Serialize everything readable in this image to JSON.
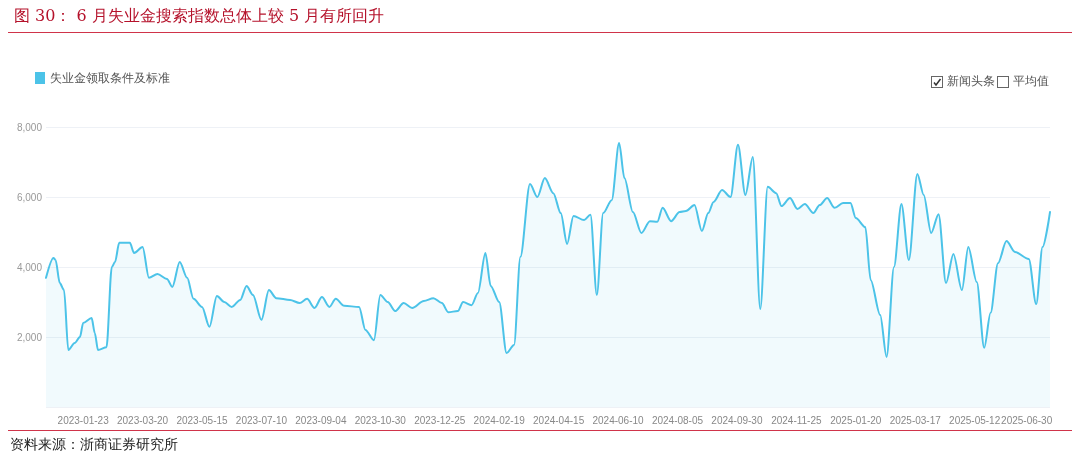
{
  "chart_data": {
    "type": "area",
    "title": "图 30：  6 月失业金搜索指数总体上较 5 月有所回升",
    "annotations": [
      "资料来源：浙商证券研究所",
      "新闻头条",
      "平均值"
    ],
    "legend": "top left",
    "grid": "y",
    "marker": "none",
    "line_style": "solid",
    "ylim": [
      0,
      8000
    ],
    "yticks": [
      {
        "value": 0,
        "label": null
      },
      {
        "value": 2000,
        "label": "2,000"
      },
      {
        "value": 4000,
        "label": "4,000"
      },
      {
        "value": 6000,
        "label": "6,000"
      },
      {
        "value": 8000,
        "label": "8,000"
      }
    ],
    "xlim": [
      "2022-12-19",
      "2025-07-22"
    ],
    "xticks": [
      "2023-01-23",
      "2023-03-20",
      "2023-05-15",
      "2023-07-10",
      "2023-09-04",
      "2023-10-30",
      "2023-12-25",
      "2024-02-19",
      "2024-04-15",
      "2024-06-10",
      "2024-08-05",
      "2024-09-30",
      "2024-11-25",
      "2025-01-20",
      "2025-03-17",
      "2025-05-12",
      "2025-06-30"
    ],
    "series": [
      {
        "name": "失业金领取条件及标准",
        "color": "#4cc3e8",
        "x": [
          "2022-12-19",
          "2022-12-26",
          "2022-12-28",
          "2023-01-01",
          "2023-01-05",
          "2023-01-09",
          "2023-01-15",
          "2023-01-20",
          "2023-01-23",
          "2023-01-31",
          "2023-02-03",
          "2023-02-06",
          "2023-02-14",
          "2023-02-19",
          "2023-02-22",
          "2023-02-26",
          "2023-03-08",
          "2023-03-12",
          "2023-03-20",
          "2023-03-26",
          "2023-04-03",
          "2023-04-12",
          "2023-04-17",
          "2023-04-24",
          "2023-05-01",
          "2023-05-07",
          "2023-05-15",
          "2023-05-22",
          "2023-05-29",
          "2023-06-05",
          "2023-06-12",
          "2023-06-20",
          "2023-06-26",
          "2023-07-02",
          "2023-07-10",
          "2023-07-17",
          "2023-07-24",
          "2023-08-06",
          "2023-08-15",
          "2023-08-22",
          "2023-08-29",
          "2023-09-05",
          "2023-09-12",
          "2023-09-18",
          "2023-09-26",
          "2023-10-10",
          "2023-10-16",
          "2023-10-24",
          "2023-10-30",
          "2023-11-06",
          "2023-11-13",
          "2023-11-21",
          "2023-11-29",
          "2023-12-10",
          "2023-12-19",
          "2023-12-27",
          "2024-01-02",
          "2024-01-11",
          "2024-01-16",
          "2024-01-24",
          "2024-01-30",
          "2024-02-06",
          "2024-02-11",
          "2024-02-19",
          "2024-02-26",
          "2024-03-04",
          "2024-03-10",
          "2024-03-19",
          "2024-03-26",
          "2024-04-02",
          "2024-04-10",
          "2024-04-17",
          "2024-04-23",
          "2024-04-29",
          "2024-05-09",
          "2024-05-15",
          "2024-05-21",
          "2024-05-27",
          "2024-06-04",
          "2024-06-11",
          "2024-06-16",
          "2024-06-24",
          "2024-07-02",
          "2024-07-10",
          "2024-07-17",
          "2024-07-22",
          "2024-07-30",
          "2024-08-07",
          "2024-08-13",
          "2024-08-21",
          "2024-08-28",
          "2024-09-03",
          "2024-09-08",
          "2024-09-16",
          "2024-09-24",
          "2024-10-01",
          "2024-10-08",
          "2024-10-15",
          "2024-10-22",
          "2024-10-29",
          "2024-11-06",
          "2024-11-11",
          "2024-11-19",
          "2024-11-26",
          "2024-12-03",
          "2024-12-11",
          "2024-12-17",
          "2024-12-24",
          "2024-12-31",
          "2025-01-08",
          "2025-01-15",
          "2025-01-20",
          "2025-01-29",
          "2025-02-03",
          "2025-02-12",
          "2025-02-18",
          "2025-02-25",
          "2025-03-04",
          "2025-03-11",
          "2025-03-19",
          "2025-03-25",
          "2025-04-01",
          "2025-04-08",
          "2025-04-15",
          "2025-04-22",
          "2025-04-30",
          "2025-05-06",
          "2025-05-14",
          "2025-05-21",
          "2025-05-27",
          "2025-06-03",
          "2025-06-11",
          "2025-06-19",
          "2025-07-02",
          "2025-07-09",
          "2025-07-15",
          "2025-07-22"
        ],
        "values": [
          3690,
          4260,
          4200,
          3540,
          3340,
          1630,
          1830,
          2000,
          2400,
          2540,
          2110,
          1630,
          1710,
          4000,
          4140,
          4690,
          4690,
          4400,
          4570,
          3690,
          3800,
          3660,
          3430,
          4140,
          3690,
          3090,
          2860,
          2290,
          3170,
          3000,
          2860,
          3060,
          3460,
          3200,
          2490,
          3340,
          3110,
          3060,
          2970,
          3090,
          2830,
          3140,
          2860,
          3090,
          2890,
          2860,
          2200,
          1910,
          3200,
          3000,
          2740,
          2970,
          2830,
          3030,
          3110,
          2970,
          2710,
          2740,
          3000,
          2910,
          3260,
          4400,
          3460,
          3000,
          1540,
          1770,
          4290,
          6370,
          6000,
          6540,
          6110,
          5540,
          4660,
          5460,
          5340,
          5490,
          3200,
          5540,
          5910,
          7540,
          6540,
          5570,
          4970,
          5310,
          5290,
          5690,
          5310,
          5570,
          5600,
          5770,
          5030,
          5540,
          5860,
          6200,
          6000,
          7490,
          6060,
          7140,
          2800,
          6290,
          6110,
          5740,
          5970,
          5660,
          5800,
          5540,
          5770,
          5970,
          5690,
          5830,
          5830,
          5400,
          5140,
          3630,
          2630,
          1430,
          4000,
          5800,
          4200,
          6660,
          6060,
          4970,
          5510,
          3540,
          4370,
          3340,
          4570,
          3570,
          1690,
          2690,
          4110,
          4740,
          4430,
          4230,
          2940,
          4570,
          5570
        ]
      }
    ]
  }
}
